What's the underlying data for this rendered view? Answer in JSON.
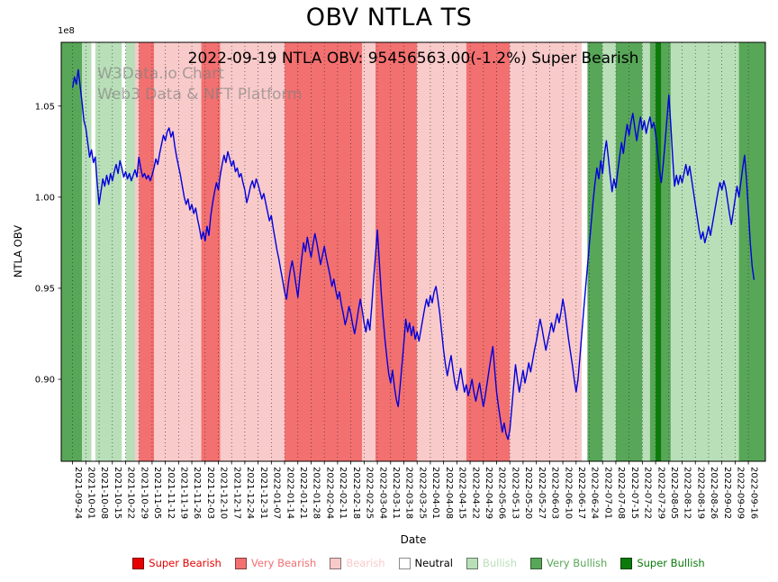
{
  "figure": {
    "title": "OBV NTLA TS",
    "subtitle": "2022-09-19 NTLA OBV: 95456563.00(-1.2%) Super Bearish",
    "watermark_line1": "W3Data.io Chart",
    "watermark_line2": "Web3 Data & NFT Platform"
  },
  "chart_data": {
    "type": "line",
    "title": "OBV NTLA TS",
    "annotation": "2022-09-19 NTLA OBV: 95456563.00(-1.2%) Super Bearish",
    "xlabel": "Date",
    "ylabel": "NTLA OBV",
    "y_offset_label": "1e8",
    "y_unit_multiplier": 100000000,
    "ylim_1e8": [
      0.855,
      1.085
    ],
    "yticks": [
      {
        "v": 0.9,
        "label": "0.90"
      },
      {
        "v": 0.95,
        "label": "0.95"
      },
      {
        "v": 1.0,
        "label": "1.00"
      },
      {
        "v": 1.05,
        "label": "1.05"
      }
    ],
    "x_tick_step_days": 7,
    "x_tick_labels": [
      "2021-09-24",
      "2021-10-01",
      "2021-10-08",
      "2021-10-15",
      "2021-10-22",
      "2021-10-29",
      "2021-11-05",
      "2021-11-12",
      "2021-11-19",
      "2021-11-26",
      "2021-12-03",
      "2021-12-10",
      "2021-12-17",
      "2021-12-24",
      "2021-12-31",
      "2022-01-07",
      "2022-01-14",
      "2022-01-21",
      "2022-01-28",
      "2022-02-04",
      "2022-02-11",
      "2022-02-18",
      "2022-02-25",
      "2022-03-04",
      "2022-03-11",
      "2022-03-18",
      "2022-03-25",
      "2022-04-01",
      "2022-04-08",
      "2022-04-15",
      "2022-04-22",
      "2022-04-29",
      "2022-05-06",
      "2022-05-13",
      "2022-05-20",
      "2022-05-27",
      "2022-06-03",
      "2022-06-10",
      "2022-06-17",
      "2022-06-24",
      "2022-07-01",
      "2022-07-08",
      "2022-07-15",
      "2022-07-22",
      "2022-07-29",
      "2022-08-05",
      "2022-08-12",
      "2022-08-19",
      "2022-08-26",
      "2022-09-02",
      "2022-09-09",
      "2022-09-16"
    ],
    "series": [
      {
        "name": "NTLA OBV",
        "color": "#0000dd",
        "x_day_step": 1,
        "values_1e8": [
          1.06,
          1.066,
          1.062,
          1.07,
          1.061,
          1.052,
          1.042,
          1.038,
          1.03,
          1.022,
          1.026,
          1.019,
          1.022,
          1.008,
          0.996,
          1.003,
          1.01,
          1.006,
          1.012,
          1.007,
          1.013,
          1.009,
          1.014,
          1.018,
          1.013,
          1.02,
          1.016,
          1.011,
          1.014,
          1.01,
          1.013,
          1.009,
          1.012,
          1.015,
          1.011,
          1.022,
          1.016,
          1.011,
          1.013,
          1.01,
          1.012,
          1.009,
          1.012,
          1.016,
          1.021,
          1.018,
          1.024,
          1.029,
          1.034,
          1.031,
          1.036,
          1.038,
          1.033,
          1.036,
          1.028,
          1.022,
          1.017,
          1.012,
          1.006,
          1.0,
          0.996,
          0.999,
          0.993,
          0.996,
          0.991,
          0.994,
          0.988,
          0.983,
          0.977,
          0.981,
          0.976,
          0.984,
          0.979,
          0.99,
          0.997,
          1.003,
          1.008,
          1.004,
          1.012,
          1.018,
          1.023,
          1.019,
          1.025,
          1.021,
          1.017,
          1.02,
          1.014,
          1.016,
          1.011,
          1.013,
          1.008,
          1.004,
          0.997,
          1.001,
          1.006,
          1.009,
          1.005,
          1.01,
          1.007,
          1.003,
          0.999,
          1.002,
          0.997,
          0.992,
          0.987,
          0.99,
          0.983,
          0.977,
          0.971,
          0.966,
          0.96,
          0.954,
          0.948,
          0.944,
          0.953,
          0.96,
          0.965,
          0.959,
          0.952,
          0.945,
          0.956,
          0.966,
          0.975,
          0.97,
          0.978,
          0.972,
          0.967,
          0.974,
          0.98,
          0.975,
          0.969,
          0.963,
          0.968,
          0.973,
          0.967,
          0.962,
          0.957,
          0.951,
          0.955,
          0.949,
          0.944,
          0.948,
          0.941,
          0.936,
          0.93,
          0.934,
          0.94,
          0.936,
          0.93,
          0.925,
          0.931,
          0.938,
          0.944,
          0.938,
          0.931,
          0.926,
          0.933,
          0.927,
          0.94,
          0.955,
          0.968,
          0.982,
          0.965,
          0.948,
          0.934,
          0.922,
          0.912,
          0.903,
          0.898,
          0.905,
          0.896,
          0.889,
          0.885,
          0.896,
          0.908,
          0.92,
          0.933,
          0.926,
          0.931,
          0.924,
          0.929,
          0.922,
          0.926,
          0.921,
          0.927,
          0.933,
          0.939,
          0.944,
          0.94,
          0.946,
          0.942,
          0.948,
          0.951,
          0.944,
          0.936,
          0.926,
          0.916,
          0.908,
          0.902,
          0.908,
          0.913,
          0.905,
          0.898,
          0.894,
          0.9,
          0.906,
          0.899,
          0.893,
          0.897,
          0.891,
          0.895,
          0.9,
          0.893,
          0.888,
          0.893,
          0.898,
          0.891,
          0.885,
          0.891,
          0.898,
          0.905,
          0.912,
          0.918,
          0.905,
          0.893,
          0.885,
          0.878,
          0.871,
          0.876,
          0.87,
          0.867,
          0.872,
          0.884,
          0.896,
          0.908,
          0.9,
          0.893,
          0.899,
          0.905,
          0.898,
          0.903,
          0.909,
          0.904,
          0.91,
          0.916,
          0.921,
          0.927,
          0.933,
          0.928,
          0.922,
          0.916,
          0.921,
          0.926,
          0.931,
          0.926,
          0.931,
          0.936,
          0.931,
          0.937,
          0.944,
          0.938,
          0.93,
          0.922,
          0.915,
          0.908,
          0.9,
          0.893,
          0.9,
          0.912,
          0.925,
          0.938,
          0.95,
          0.962,
          0.974,
          0.986,
          0.998,
          1.008,
          1.016,
          1.01,
          1.02,
          1.013,
          1.024,
          1.031,
          1.022,
          1.012,
          1.003,
          1.01,
          1.005,
          1.014,
          1.022,
          1.03,
          1.024,
          1.033,
          1.04,
          1.034,
          1.041,
          1.046,
          1.038,
          1.031,
          1.038,
          1.044,
          1.037,
          1.042,
          1.035,
          1.04,
          1.044,
          1.038,
          1.041,
          1.035,
          1.025,
          1.015,
          1.008,
          1.018,
          1.03,
          1.043,
          1.056,
          1.04,
          1.022,
          1.006,
          1.012,
          1.007,
          1.012,
          1.008,
          1.013,
          1.018,
          1.012,
          1.017,
          1.01,
          1.003,
          0.996,
          0.989,
          0.982,
          0.977,
          0.981,
          0.975,
          0.979,
          0.984,
          0.979,
          0.985,
          0.991,
          0.997,
          1.003,
          1.008,
          1.004,
          1.009,
          1.005,
          0.998,
          0.991,
          0.985,
          0.992,
          0.999,
          1.006,
          1.0,
          1.008,
          1.016,
          1.023,
          1.01,
          0.993,
          0.975,
          0.962,
          0.9546
        ]
      }
    ],
    "bands": [
      {
        "from_day": -6,
        "to_day": 5,
        "sentiment": "very_bullish"
      },
      {
        "from_day": 5,
        "to_day": 10,
        "sentiment": "bullish"
      },
      {
        "from_day": 10,
        "to_day": 12,
        "sentiment": "neutral"
      },
      {
        "from_day": 12,
        "to_day": 26,
        "sentiment": "bullish"
      },
      {
        "from_day": 26,
        "to_day": 28,
        "sentiment": "neutral"
      },
      {
        "from_day": 28,
        "to_day": 33,
        "sentiment": "bullish"
      },
      {
        "from_day": 33,
        "to_day": 35,
        "sentiment": "bearish"
      },
      {
        "from_day": 35,
        "to_day": 43,
        "sentiment": "very_bearish"
      },
      {
        "from_day": 43,
        "to_day": 68,
        "sentiment": "bearish"
      },
      {
        "from_day": 68,
        "to_day": 78,
        "sentiment": "very_bearish"
      },
      {
        "from_day": 78,
        "to_day": 112,
        "sentiment": "bearish"
      },
      {
        "from_day": 112,
        "to_day": 153,
        "sentiment": "very_bearish"
      },
      {
        "from_day": 153,
        "to_day": 160,
        "sentiment": "bearish"
      },
      {
        "from_day": 160,
        "to_day": 182,
        "sentiment": "very_bearish"
      },
      {
        "from_day": 182,
        "to_day": 208,
        "sentiment": "bearish"
      },
      {
        "from_day": 208,
        "to_day": 231,
        "sentiment": "very_bearish"
      },
      {
        "from_day": 231,
        "to_day": 269,
        "sentiment": "bearish"
      },
      {
        "from_day": 269,
        "to_day": 272,
        "sentiment": "neutral"
      },
      {
        "from_day": 272,
        "to_day": 280,
        "sentiment": "very_bullish"
      },
      {
        "from_day": 280,
        "to_day": 287,
        "sentiment": "bullish"
      },
      {
        "from_day": 287,
        "to_day": 301,
        "sentiment": "very_bullish"
      },
      {
        "from_day": 301,
        "to_day": 305,
        "sentiment": "bullish"
      },
      {
        "from_day": 305,
        "to_day": 308,
        "sentiment": "very_bullish"
      },
      {
        "from_day": 308,
        "to_day": 311,
        "sentiment": "super_bullish"
      },
      {
        "from_day": 311,
        "to_day": 316,
        "sentiment": "very_bullish"
      },
      {
        "from_day": 316,
        "to_day": 352,
        "sentiment": "bullish"
      },
      {
        "from_day": 352,
        "to_day": 366,
        "sentiment": "very_bullish"
      }
    ],
    "sentiment_colors": {
      "super_bearish": "#e60000",
      "very_bearish": "#f37070",
      "bearish": "#f9caca",
      "neutral": "#ffffff",
      "bullish": "#b9dfb9",
      "very_bullish": "#58a758",
      "super_bullish": "#0b7a0b"
    },
    "legend": [
      {
        "label": "Super Bearish",
        "key": "super_bearish"
      },
      {
        "label": "Very Bearish",
        "key": "very_bearish"
      },
      {
        "label": "Bearish",
        "key": "bearish"
      },
      {
        "label": "Neutral",
        "key": "neutral"
      },
      {
        "label": "Bullish",
        "key": "bullish"
      },
      {
        "label": "Very Bullish",
        "key": "very_bullish"
      },
      {
        "label": "Super Bullish",
        "key": "super_bullish"
      }
    ]
  }
}
